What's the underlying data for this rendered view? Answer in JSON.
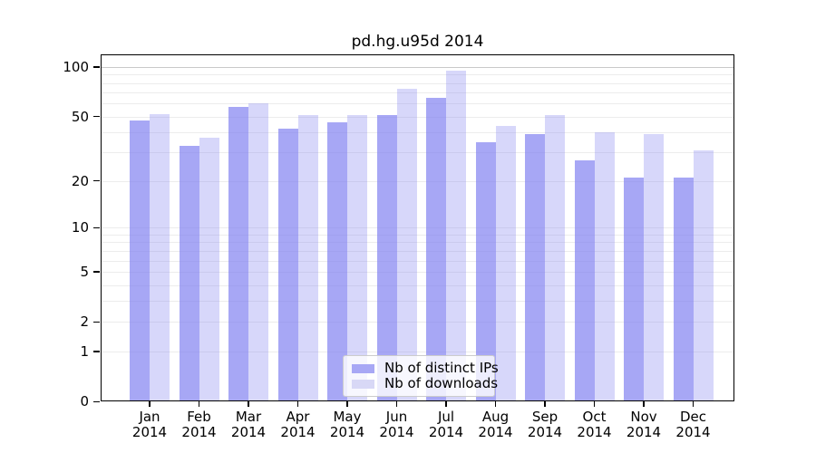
{
  "title": "pd.hg.u95d 2014",
  "chart_data": {
    "type": "bar",
    "title": "pd.hg.u95d 2014",
    "categories": [
      "Jan 2014",
      "Feb 2014",
      "Mar 2014",
      "Apr 2014",
      "May 2014",
      "Jun 2014",
      "Jul 2014",
      "Aug 2014",
      "Sep 2014",
      "Oct 2014",
      "Nov 2014",
      "Dec 2014"
    ],
    "series": [
      {
        "name": "Nb of distinct IPs",
        "values": [
          47,
          33,
          57,
          42,
          46,
          51,
          65,
          35,
          39,
          27,
          21,
          21
        ],
        "fill": "rgba(121,121,240,0.66)",
        "swatch": "#a8a8f5"
      },
      {
        "name": "Nb of downloads",
        "values": [
          52,
          37,
          60,
          51,
          51,
          74,
          95,
          44,
          51,
          40,
          39,
          31
        ],
        "fill": "rgba(121,121,240,0.30)",
        "swatch": "#d8d8f6"
      }
    ],
    "xlabel": "",
    "ylabel": "",
    "y_scale": "log(1+x)",
    "ylim": [
      0,
      119
    ],
    "y_ticks": [
      100,
      50,
      20,
      10,
      5,
      2,
      1,
      0
    ],
    "y_gridlines": [
      1,
      2,
      3,
      4,
      5,
      6,
      7,
      8,
      9,
      10,
      20,
      30,
      40,
      50,
      60,
      70,
      80,
      90,
      100
    ],
    "grid": "on",
    "legend_position": "lower center",
    "colors": {
      "bar_dark": "#a8a8f5",
      "bar_light": "#d8d8f6",
      "gridline": "#ececec",
      "gridline_100": "#c9c9c9"
    }
  }
}
